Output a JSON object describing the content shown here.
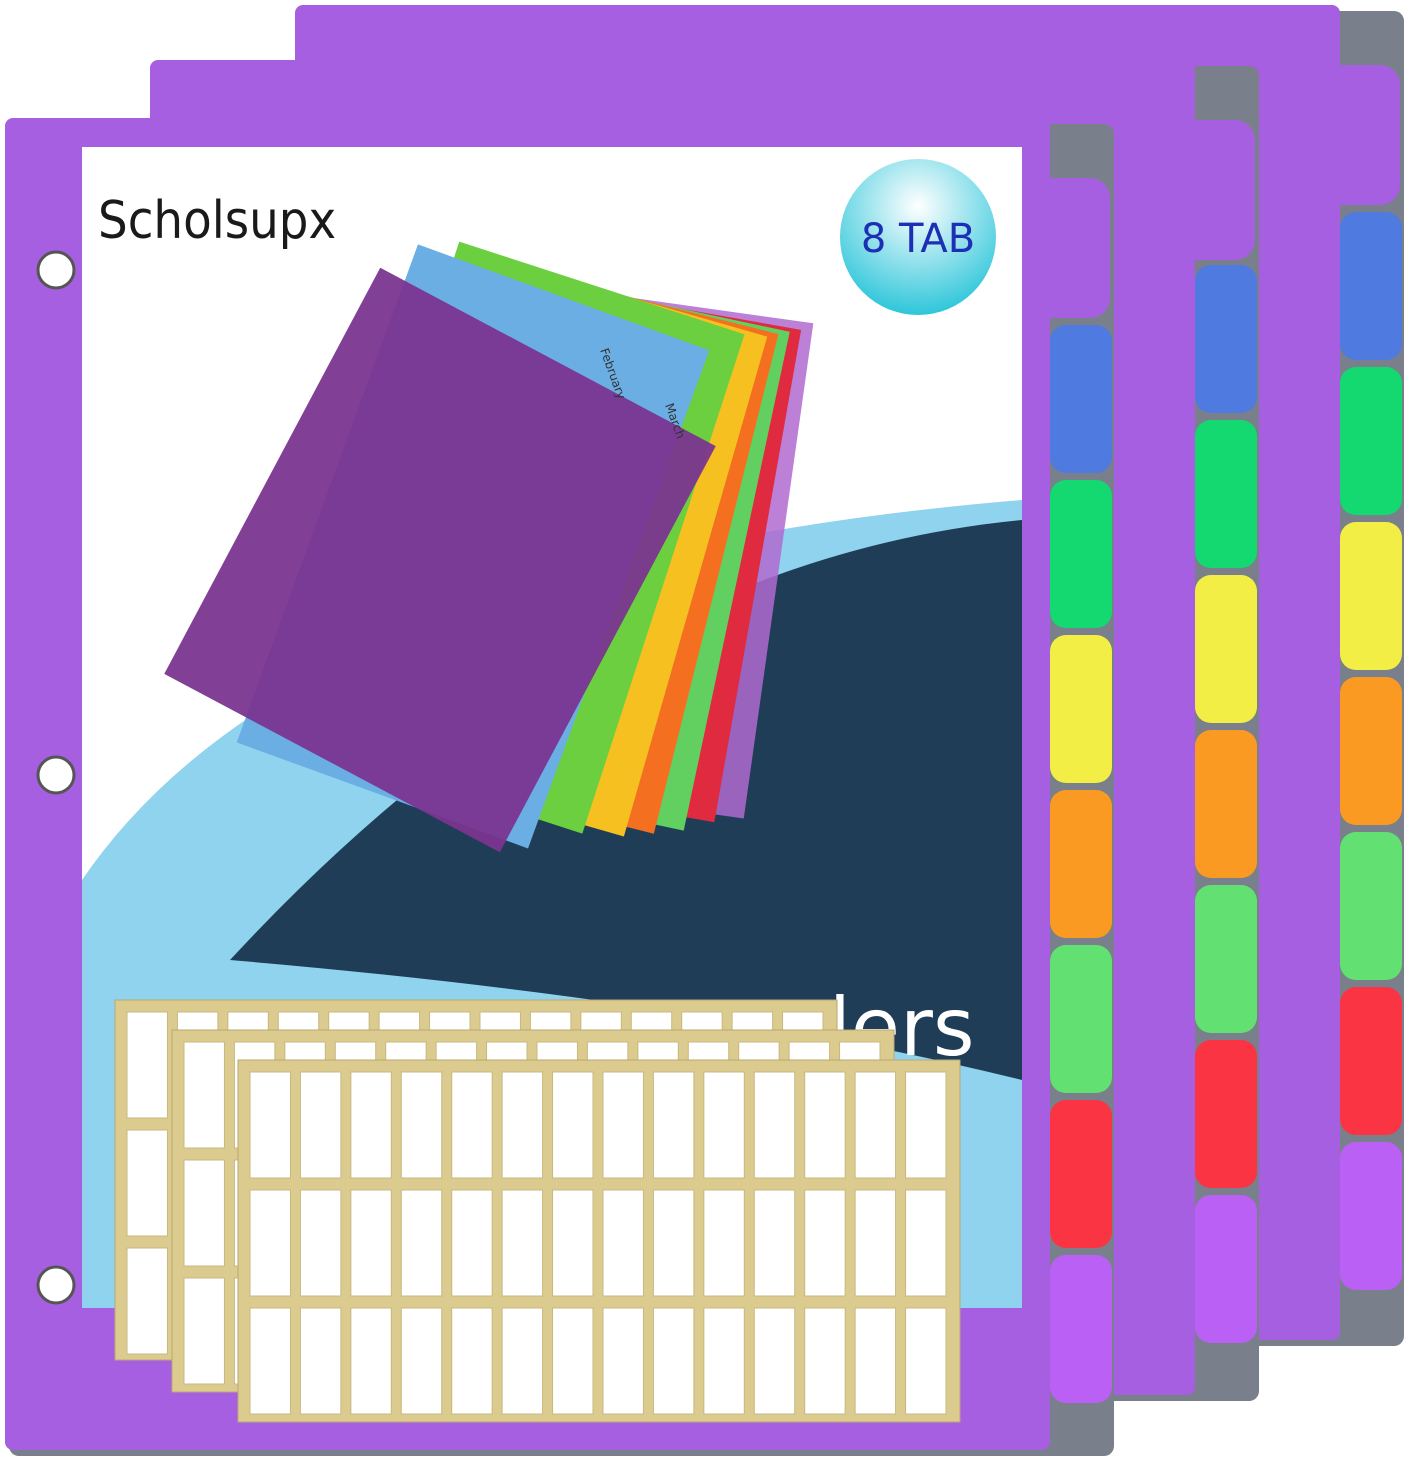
{
  "brand": "Scholsupx",
  "badge": "8 TAB",
  "cover_text": "ders",
  "tab_labels": [
    "February",
    "March"
  ]
}
